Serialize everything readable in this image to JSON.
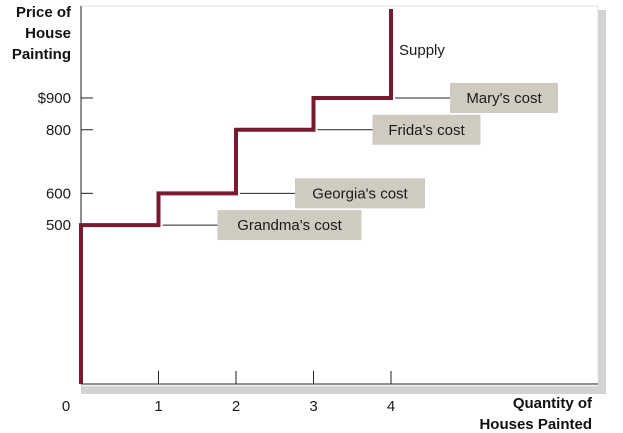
{
  "chart_data": {
    "type": "line",
    "step": true,
    "title": "",
    "ylabel_lines": [
      "Price of",
      "House",
      "Painting"
    ],
    "xlabel_lines": [
      "Quantity of",
      "Houses Painted"
    ],
    "x_ticks": [
      "0",
      "1",
      "2",
      "3",
      "4"
    ],
    "y_ticks": [
      {
        "value": 500,
        "label": "500"
      },
      {
        "value": 600,
        "label": "600"
      },
      {
        "value": 800,
        "label": "800"
      },
      {
        "value": 900,
        "label": "$900"
      }
    ],
    "series": [
      {
        "name": "Supply",
        "color": "#7a1a2e",
        "points": [
          {
            "x": 0,
            "y": 0
          },
          {
            "x": 0,
            "y": 500
          },
          {
            "x": 1,
            "y": 500
          },
          {
            "x": 1,
            "y": 600
          },
          {
            "x": 2,
            "y": 600
          },
          {
            "x": 2,
            "y": 800
          },
          {
            "x": 3,
            "y": 800
          },
          {
            "x": 3,
            "y": 900
          },
          {
            "x": 4,
            "y": 900
          },
          {
            "x": 4,
            "y": 1180
          }
        ]
      }
    ],
    "annotations": [
      {
        "text": "Grandma's cost",
        "x": 0.5,
        "y": 500
      },
      {
        "text": "Georgia's cost",
        "x": 1.5,
        "y": 600
      },
      {
        "text": "Frida's cost",
        "x": 2.5,
        "y": 800
      },
      {
        "text": "Mary's cost",
        "x": 3.5,
        "y": 900
      }
    ],
    "xlim": [
      0,
      4.8
    ],
    "ylim": [
      0,
      1180
    ],
    "grid": false,
    "colors": {
      "line": "#7a1a2e",
      "box": "#cfcbc0",
      "axis": "#222222",
      "shadow": "#d2d2d2"
    }
  }
}
